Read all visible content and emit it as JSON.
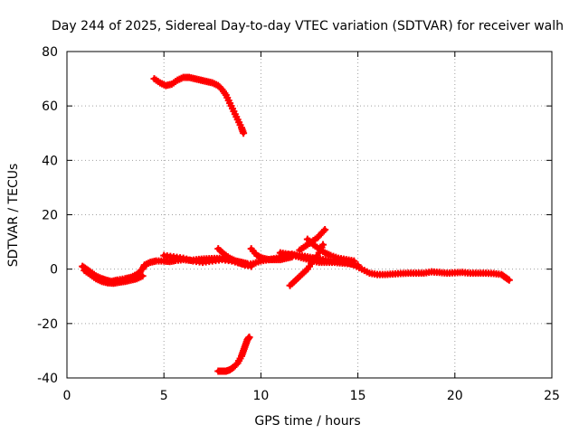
{
  "chart_data": {
    "type": "scatter",
    "title": "Day 244 of 2025, Sidereal Day-to-day VTEC variation (SDTVAR) for receiver walh",
    "xlabel": "GPS time / hours",
    "ylabel": "SDTVAR / TECUs",
    "xlim": [
      0,
      25
    ],
    "ylim": [
      -40,
      80
    ],
    "xticks": [
      0,
      5,
      10,
      15,
      20,
      25
    ],
    "yticks": [
      -40,
      -20,
      0,
      20,
      40,
      60,
      80
    ],
    "grid": true,
    "marker": "plus",
    "color": "#ff0000",
    "series": [
      {
        "name": "arc-high",
        "x": [
          4.5,
          4.8,
          5.1,
          5.4,
          5.7,
          6.0,
          6.3,
          6.6,
          6.9,
          7.2,
          7.5,
          7.8,
          8.0,
          8.2,
          8.4,
          8.6,
          8.8,
          9.0,
          9.1
        ],
        "y": [
          70,
          68.5,
          67.5,
          68,
          69.5,
          70.5,
          70.5,
          70,
          69.5,
          69,
          68.5,
          67.5,
          66,
          64,
          61,
          58,
          55,
          52,
          50
        ]
      },
      {
        "name": "arc-low",
        "x": [
          7.8,
          8.0,
          8.2,
          8.4,
          8.6,
          8.8,
          9.0,
          9.1,
          9.2,
          9.3,
          9.4
        ],
        "y": [
          -37.5,
          -37.5,
          -37.5,
          -37,
          -36,
          -34.5,
          -32,
          -30,
          -28,
          -26,
          -25
        ]
      },
      {
        "name": "main-band",
        "x": [
          0.8,
          1.0,
          1.2,
          1.5,
          1.8,
          2.0,
          2.3,
          2.6,
          3.0,
          3.3,
          3.6,
          3.9,
          4.0,
          4.3,
          4.6,
          5.0,
          5.3,
          5.6,
          6.0,
          6.4,
          6.8,
          7.2,
          7.6,
          8.0,
          8.4,
          8.8,
          9.2,
          9.6,
          10.0,
          10.4,
          10.8,
          11.2,
          11.6,
          12.0,
          12.4,
          12.8,
          13.2,
          13.6,
          14.0,
          14.4,
          14.8,
          15.2,
          15.6,
          16.0,
          16.4,
          16.8,
          17.2,
          17.6,
          18.0,
          18.4,
          18.8,
          19.2,
          19.6,
          20.0,
          20.4,
          20.8,
          21.2,
          21.6,
          22.0,
          22.4,
          22.6,
          22.8
        ],
        "y": [
          1,
          0,
          -1,
          -2.5,
          -3.5,
          -4,
          -4.5,
          -4,
          -3.5,
          -3,
          -2,
          0,
          1.5,
          2.5,
          3,
          3,
          2.8,
          3.2,
          3.5,
          3.2,
          3.6,
          3.8,
          3.9,
          4,
          3.5,
          2.5,
          1.5,
          2,
          3,
          3.5,
          4,
          5,
          5.5,
          5,
          4.5,
          4,
          3.5,
          3,
          2.8,
          2.5,
          1.5,
          0,
          -1.5,
          -2,
          -2,
          -1.8,
          -1.6,
          -1.5,
          -1.5,
          -1.5,
          -1,
          -1.2,
          -1.5,
          -1.3,
          -1.2,
          -1.5,
          -1.5,
          -1.5,
          -1.6,
          -2,
          -3,
          -4
        ]
      },
      {
        "name": "band-lower",
        "x": [
          0.9,
          1.2,
          1.5,
          1.8,
          2.1,
          2.4,
          2.7,
          3.0,
          3.3,
          3.6,
          3.9
        ],
        "y": [
          -0.5,
          -2,
          -3.5,
          -4.5,
          -5,
          -5.2,
          -4.8,
          -4.5,
          -4,
          -3.5,
          -2.5
        ]
      },
      {
        "name": "band-mid",
        "x": [
          5.0,
          5.5,
          6.0,
          6.5,
          7.0,
          7.5,
          8.0,
          8.5,
          9.0,
          9.5
        ],
        "y": [
          5,
          4.5,
          4,
          3,
          2.5,
          3,
          3.5,
          3,
          2,
          1
        ]
      },
      {
        "name": "rise-a",
        "x": [
          7.8,
          8.1,
          8.4,
          8.7,
          9.0,
          9.3
        ],
        "y": [
          7.5,
          5.5,
          4,
          3,
          2.5,
          2
        ]
      },
      {
        "name": "rise-b",
        "x": [
          9.5,
          9.8,
          10.1,
          10.4,
          10.7,
          11.0,
          11.3,
          11.6
        ],
        "y": [
          7.5,
          5,
          4,
          3.5,
          3.5,
          3.5,
          4,
          4.5
        ]
      },
      {
        "name": "rise-c",
        "x": [
          11.5,
          11.8,
          12.1,
          12.4,
          12.7,
          13.0,
          13.2
        ],
        "y": [
          -6,
          -4,
          -2,
          0,
          3,
          6,
          9
        ]
      },
      {
        "name": "rise-d",
        "x": [
          12.0,
          12.3,
          12.6,
          12.9,
          13.1,
          13.3
        ],
        "y": [
          7,
          8.5,
          10,
          11.5,
          13,
          14.5
        ]
      },
      {
        "name": "fall-a",
        "x": [
          11.0,
          11.4,
          11.8,
          12.2,
          12.6,
          13.0,
          13.4,
          13.8,
          14.2,
          14.6,
          15.0
        ],
        "y": [
          6,
          5.5,
          4.8,
          4,
          3.2,
          2.5,
          2.5,
          2.5,
          2.2,
          2,
          1.5
        ]
      },
      {
        "name": "fall-b",
        "x": [
          12.4,
          12.7,
          13.0,
          13.3,
          13.6,
          14.0,
          14.4,
          14.8
        ],
        "y": [
          11,
          9,
          7.5,
          6,
          5,
          4,
          3.5,
          3
        ]
      }
    ]
  }
}
